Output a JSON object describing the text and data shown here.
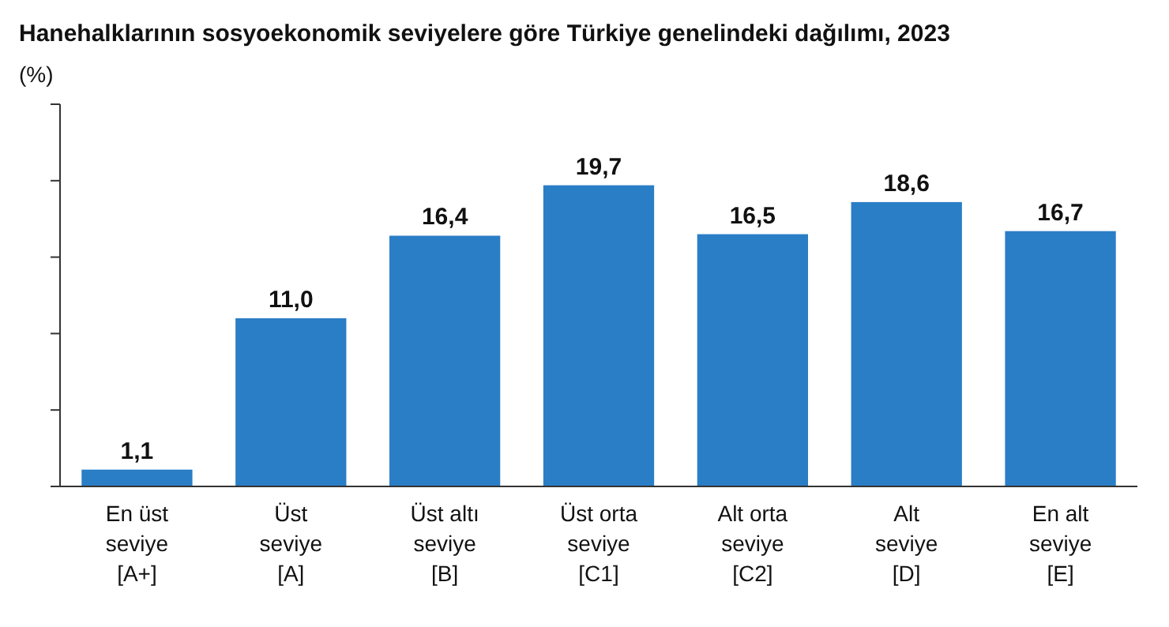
{
  "chart_data": {
    "type": "bar",
    "title": "Hanehalklarının sosyoekonomik seviyelere göre Türkiye genelindeki dağılımı, 2023",
    "ylabel": "(%)",
    "categories": [
      "En üst\nseviye\n[A+]",
      "Üst\nseviye\n[A]",
      "Üst altı\nseviye\n[B]",
      "Üst orta\nseviye\n[C1]",
      "Alt orta\nseviye\n[C2]",
      "Alt\nseviye\n[D]",
      "En alt\nseviye\n[E]"
    ],
    "values": [
      1.1,
      11.0,
      16.4,
      19.7,
      16.5,
      18.6,
      16.7
    ],
    "value_labels": [
      "1,1",
      "11,0",
      "16,4",
      "19,7",
      "16,5",
      "18,6",
      "16,7"
    ],
    "color": "#2a7ec6",
    "ylim": [
      0,
      25
    ],
    "yticks": [
      {
        "value": 0,
        "label": null
      },
      {
        "value": 5,
        "label": null
      },
      {
        "value": 10,
        "label": null
      },
      {
        "value": 15,
        "label": null
      },
      {
        "value": 20,
        "label": null
      },
      {
        "value": 25,
        "label": null
      }
    ],
    "tick_labels": "x",
    "grid": false
  }
}
